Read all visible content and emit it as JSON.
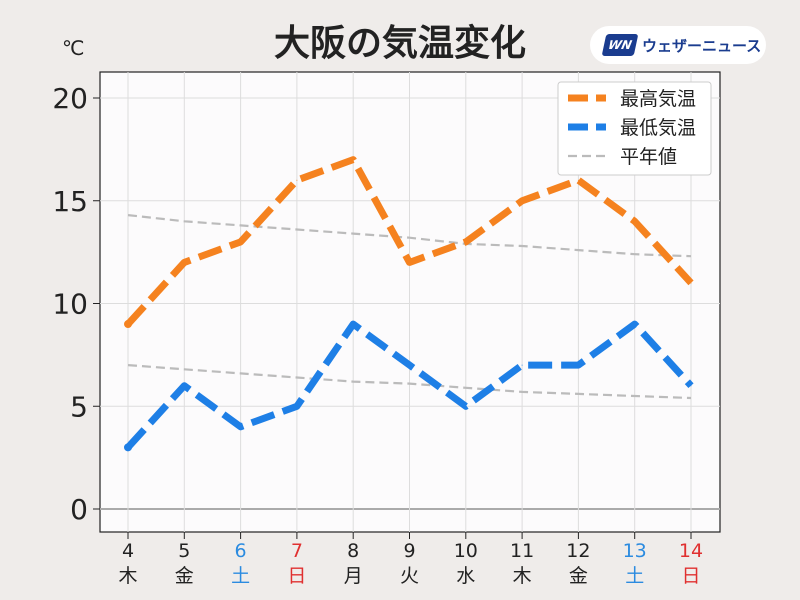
{
  "title": "大阪の気温変化",
  "brand": {
    "logo_text": "WN",
    "name": "ウェザーニュース"
  },
  "colors": {
    "max": "#f5821f",
    "min": "#1e7fe6",
    "normal": "#bbbbbb",
    "saturday": "#2b8be0",
    "sunday": "#e03030",
    "weekday": "#222222",
    "plot_bg": "#fcfbfc"
  },
  "chart_data": {
    "type": "line",
    "title": "大阪の気温変化",
    "ylabel": "℃",
    "ylim": [
      0,
      21
    ],
    "yticks": [
      0,
      5,
      10,
      15,
      20
    ],
    "grid": true,
    "legend_position": "top-right",
    "categories": [
      {
        "day": "4",
        "weekday": "木",
        "kind": "weekday"
      },
      {
        "day": "5",
        "weekday": "金",
        "kind": "weekday"
      },
      {
        "day": "6",
        "weekday": "土",
        "kind": "saturday"
      },
      {
        "day": "7",
        "weekday": "日",
        "kind": "sunday"
      },
      {
        "day": "8",
        "weekday": "月",
        "kind": "weekday"
      },
      {
        "day": "9",
        "weekday": "火",
        "kind": "weekday"
      },
      {
        "day": "10",
        "weekday": "水",
        "kind": "weekday"
      },
      {
        "day": "11",
        "weekday": "木",
        "kind": "weekday"
      },
      {
        "day": "12",
        "weekday": "金",
        "kind": "weekday"
      },
      {
        "day": "13",
        "weekday": "土",
        "kind": "saturday"
      },
      {
        "day": "14",
        "weekday": "日",
        "kind": "sunday"
      }
    ],
    "series": [
      {
        "name": "最高気温",
        "key": "max",
        "values": [
          9,
          12,
          13,
          16,
          17,
          12,
          13,
          15,
          16,
          14,
          11
        ]
      },
      {
        "name": "最低気温",
        "key": "min",
        "values": [
          3,
          6,
          4,
          5,
          9,
          7,
          5,
          7,
          7,
          9,
          6
        ]
      },
      {
        "name": "平年値",
        "key": "normal",
        "values": [
          14.3,
          14.0,
          13.8,
          13.6,
          13.4,
          13.2,
          12.9,
          12.8,
          12.6,
          12.4,
          12.3
        ]
      },
      {
        "name": "平年値",
        "key": "normal",
        "legend": false,
        "values": [
          7.0,
          6.8,
          6.6,
          6.4,
          6.2,
          6.1,
          5.9,
          5.7,
          5.6,
          5.5,
          5.4
        ]
      }
    ]
  }
}
